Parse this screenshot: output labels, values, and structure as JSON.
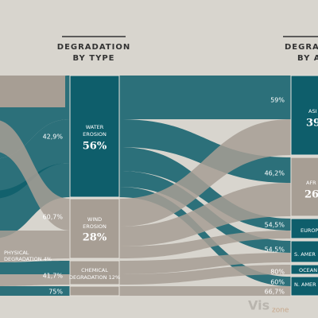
{
  "titles": [
    {
      "line1": "DEGRADATION",
      "line2": "BY TYPE"
    },
    {
      "line1": "DEGRAD",
      "line2": "BY A"
    }
  ],
  "left_flow_labels": [
    "42,9%",
    "60,7%",
    "41,7%",
    "75%"
  ],
  "physical": {
    "line1": "PHYSICAL",
    "line2": "DEGRADATION 4%"
  },
  "types": [
    {
      "line1": "WATER",
      "line2": "EROSION",
      "value": "56%"
    },
    {
      "line1": "WIND",
      "line2": "EROSION",
      "value": "28%"
    },
    {
      "line1": "CHEMICAL",
      "line2": "DEGRADATION 12%"
    }
  ],
  "right_flow_labels": [
    "59%",
    "46,2%",
    "54,5%",
    "54,5%",
    "80%",
    "60%",
    "66,7%"
  ],
  "areas": [
    {
      "label": "ASI",
      "value": "39"
    },
    {
      "label": "AFR",
      "value": "26"
    },
    {
      "label": "EUROP"
    },
    {
      "label": "S. AMER"
    },
    {
      "label": "OCEAN"
    },
    {
      "label": "N. AMER"
    }
  ],
  "watermark": {
    "main": "Vis",
    "small": "zone"
  }
}
